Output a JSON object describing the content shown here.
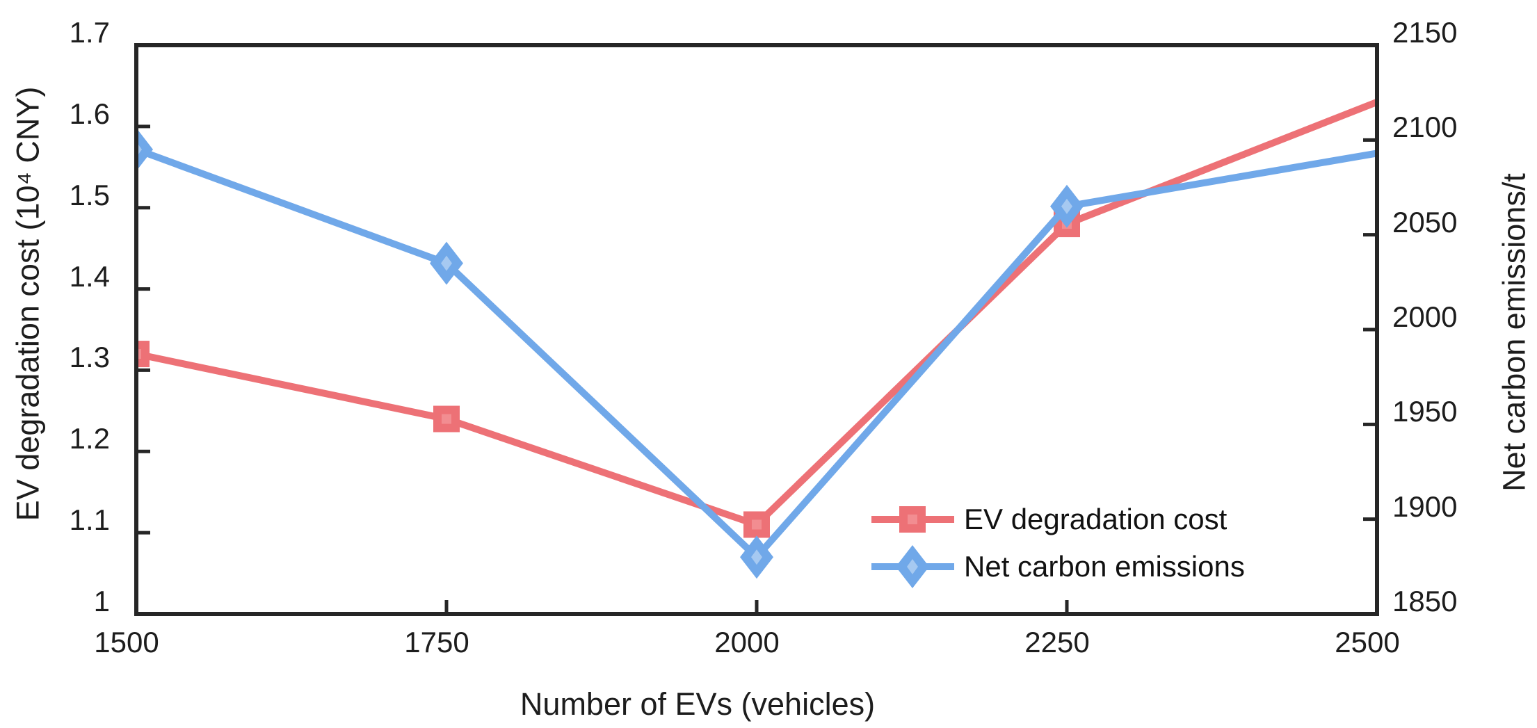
{
  "chart_data": {
    "type": "line",
    "title": "",
    "xlabel": "Number of EVs (vehicles)",
    "x": [
      1500,
      1750,
      2000,
      2250,
      2500
    ],
    "x_tick_labels": [
      "1500",
      "1750",
      "2000",
      "2250",
      "2500"
    ],
    "left_axis": {
      "label": "EV degradation cost (10⁴ CNY)",
      "range": [
        1,
        1.7
      ],
      "tick_labels": [
        "1.7",
        "1.6",
        "1.5",
        "1.4",
        "1.3",
        "1.2",
        "1.1",
        "1"
      ]
    },
    "right_axis": {
      "label": "Net carbon emissions/t",
      "range": [
        1850,
        2150
      ],
      "tick_labels": [
        "2150",
        "2100",
        "2050",
        "2000",
        "1950",
        "1900",
        "1850"
      ]
    },
    "series": [
      {
        "name": "EV degradation cost",
        "axis": "left",
        "marker": "square",
        "color": "#ED7176",
        "marker_inner_color": "#F28D91",
        "values": [
          1.32,
          1.24,
          1.11,
          1.48,
          1.63
        ],
        "markers_visible": [
          true,
          true,
          true,
          true,
          false
        ]
      },
      {
        "name": "Net carbon emissions",
        "axis": "right",
        "marker": "diamond",
        "color": "#70A8E9",
        "marker_inner_color": "#A6C9F1",
        "values": [
          2095,
          2035,
          1880,
          2065,
          2093
        ],
        "markers_visible": [
          true,
          true,
          true,
          true,
          false
        ]
      }
    ],
    "legend": {
      "position": "inside-bottom-right",
      "entries": [
        "EV degradation cost",
        "Net carbon emissions"
      ]
    },
    "grid": false,
    "axis_color": "#262626"
  }
}
